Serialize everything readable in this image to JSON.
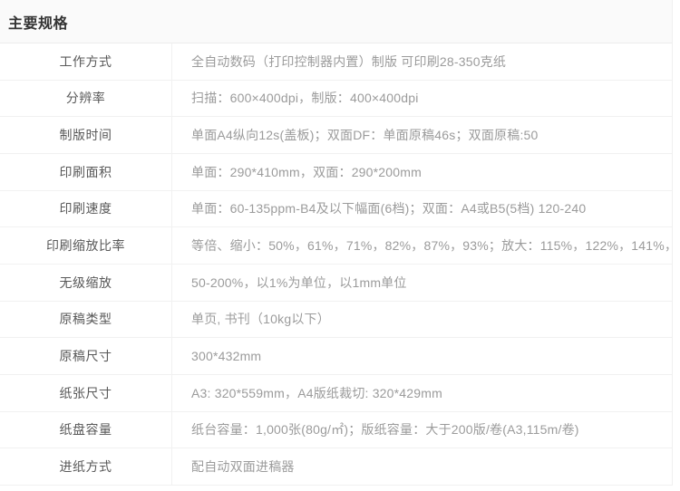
{
  "page": {
    "title": "主要规格"
  },
  "colors": {
    "header_background": "#fafafa",
    "border": "#f1f1f1",
    "title_text": "#333333",
    "label_text": "#595959",
    "value_text": "#9b9b9b"
  },
  "table": {
    "rows": [
      {
        "label": "工作方式",
        "value": "全自动数码（打印控制器内置）制版 可印刷28-350克纸"
      },
      {
        "label": "分辨率",
        "value": "扫描：600×400dpi，制版：400×400dpi"
      },
      {
        "label": "制版时间",
        "value": "单面A4纵向12s(盖板)；双面DF：单面原稿46s；双面原稿:50"
      },
      {
        "label": "印刷面积",
        "value": "单面：290*410mm，双面：290*200mm"
      },
      {
        "label": "印刷速度",
        "value": "单面：60-135ppm-B4及以下幅面(6档)；双面：A4或B5(5档) 120-240"
      },
      {
        "label": "印刷缩放比率",
        "value": "等倍、缩小：50%，61%，71%，82%，87%，93%；放大：115%，122%，141%，"
      },
      {
        "label": "无级缩放",
        "value": "50-200%，以1%为单位，以1mm单位"
      },
      {
        "label": "原稿类型",
        "value": "单页, 书刊（10kg以下）"
      },
      {
        "label": "原稿尺寸",
        "value": "300*432mm"
      },
      {
        "label": "纸张尺寸",
        "value": "A3: 320*559mm，A4版纸裁切: 320*429mm"
      },
      {
        "label": "纸盘容量",
        "value": "纸台容量：1,000张(80g/㎡)；版纸容量：大于200版/卷(A3,115m/卷)"
      },
      {
        "label": "进纸方式",
        "value": "配自动双面进稿器"
      }
    ]
  }
}
